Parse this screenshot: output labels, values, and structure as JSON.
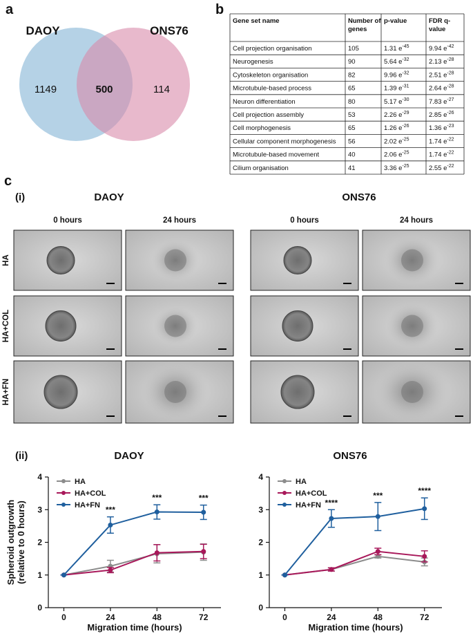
{
  "panel_a": {
    "label": "a",
    "venn": {
      "sets": [
        "DAOY",
        "ONS76"
      ],
      "left": 1149,
      "overlap": 500,
      "right": 114
    }
  },
  "panel_b": {
    "label": "b",
    "header": [
      [
        "Gene set name"
      ],
      [
        "Number of",
        "genes"
      ],
      [
        "p-value"
      ],
      [
        "FDR q-",
        "value"
      ]
    ],
    "rows": [
      [
        "Cell projection organisation",
        105,
        {
          "base": "1.31 e",
          "sup": "-45"
        },
        {
          "base": "9.94 e",
          "sup": "-42"
        }
      ],
      [
        "Neurogenesis",
        90,
        {
          "base": "5.64 e",
          "sup": "-32"
        },
        {
          "base": "2.13 e",
          "sup": "-28"
        }
      ],
      [
        "Cytoskeleton organisation",
        82,
        {
          "base": "9.96 e",
          "sup": "-32"
        },
        {
          "base": "2.51 e",
          "sup": "-28"
        }
      ],
      [
        "Microtubule-based process",
        65,
        {
          "base": "1.39 e",
          "sup": "-31"
        },
        {
          "base": "2.64 e",
          "sup": "-28"
        }
      ],
      [
        "Neuron differentiation",
        80,
        {
          "base": "5.17 e",
          "sup": "-30"
        },
        {
          "base": "7.83 e",
          "sup": "-27"
        }
      ],
      [
        "Cell projection assembly",
        53,
        {
          "base": "2.26 e",
          "sup": "-29"
        },
        {
          "base": "2.85 e",
          "sup": "-26"
        }
      ],
      [
        "Cell morphogenesis",
        65,
        {
          "base": "1.26 e",
          "sup": "-26"
        },
        {
          "base": "1.36 e",
          "sup": "-23"
        }
      ],
      [
        "Cellular component morphogenesis",
        56,
        {
          "base": "2.02 e",
          "sup": "-25"
        },
        {
          "base": "1.74 e",
          "sup": "-22"
        }
      ],
      [
        "Microtubule-based movement",
        40,
        {
          "base": "2.06 e",
          "sup": "-25"
        },
        {
          "base": "1.74 e",
          "sup": "-22"
        }
      ],
      [
        "Cilium organisation",
        41,
        {
          "base": "3.36 e",
          "sup": "-25"
        },
        {
          "base": "2.55 e",
          "sup": "-22"
        }
      ]
    ]
  },
  "panel_c": {
    "label": "c",
    "part_i": "(i)",
    "part_ii": "(ii)",
    "groups": [
      {
        "title": "DAOY",
        "columns": [
          "0 hours",
          "24 hours"
        ]
      },
      {
        "title": "ONS76",
        "columns": [
          "0 hours",
          "24 hours"
        ]
      }
    ],
    "rows": [
      "HA",
      "HA+COL",
      "HA+FN"
    ]
  },
  "chart_data": [
    {
      "type": "line",
      "title": "DAOY",
      "ylabel": [
        "Spheroid outgrowth",
        "(relative to 0 hours)"
      ],
      "xlabel": "Migration time (hours)",
      "x": [
        0,
        24,
        48,
        72
      ],
      "xlim": [
        -8,
        81
      ],
      "xticks": [
        0,
        24,
        48,
        72
      ],
      "ylim": [
        0,
        4
      ],
      "yticks": [
        0,
        1,
        2,
        3,
        4
      ],
      "legend": "upper left",
      "series": [
        {
          "name": "HA",
          "color": "#8c8c8c",
          "values": [
            1,
            1.27,
            1.65,
            1.7
          ],
          "errors": [
            0,
            0.18,
            0.28,
            0.25
          ]
        },
        {
          "name": "HA+COL",
          "color": "#a8185a",
          "values": [
            1,
            1.15,
            1.68,
            1.72
          ],
          "errors": [
            0,
            0.08,
            0.25,
            0.22
          ]
        },
        {
          "name": "HA+FN",
          "color": "#1f5f9e",
          "values": [
            1,
            2.53,
            2.93,
            2.92
          ],
          "errors": [
            0,
            0.25,
            0.22,
            0.22
          ]
        }
      ],
      "significance": [
        null,
        "***",
        "***",
        "***"
      ]
    },
    {
      "type": "line",
      "title": "ONS76",
      "xlabel": "Migration time (hours)",
      "x": [
        0,
        24,
        48,
        72
      ],
      "xlim": [
        -8,
        81
      ],
      "xticks": [
        0,
        24,
        48,
        72
      ],
      "ylim": [
        0,
        4
      ],
      "yticks": [
        0,
        1,
        2,
        3,
        4
      ],
      "legend": "upper left",
      "series": [
        {
          "name": "HA",
          "color": "#8c8c8c",
          "values": [
            1,
            1.17,
            1.57,
            1.4
          ],
          "errors": [
            0,
            0.05,
            0.05,
            0.12
          ]
        },
        {
          "name": "HA+COL",
          "color": "#a8185a",
          "values": [
            1,
            1.17,
            1.72,
            1.57
          ],
          "errors": [
            0,
            0.05,
            0.1,
            0.17
          ]
        },
        {
          "name": "HA+FN",
          "color": "#1f5f9e",
          "values": [
            1,
            2.73,
            2.79,
            3.03
          ],
          "errors": [
            0,
            0.27,
            0.43,
            0.33
          ]
        }
      ],
      "significance": [
        null,
        "****",
        "***",
        "****"
      ]
    }
  ]
}
